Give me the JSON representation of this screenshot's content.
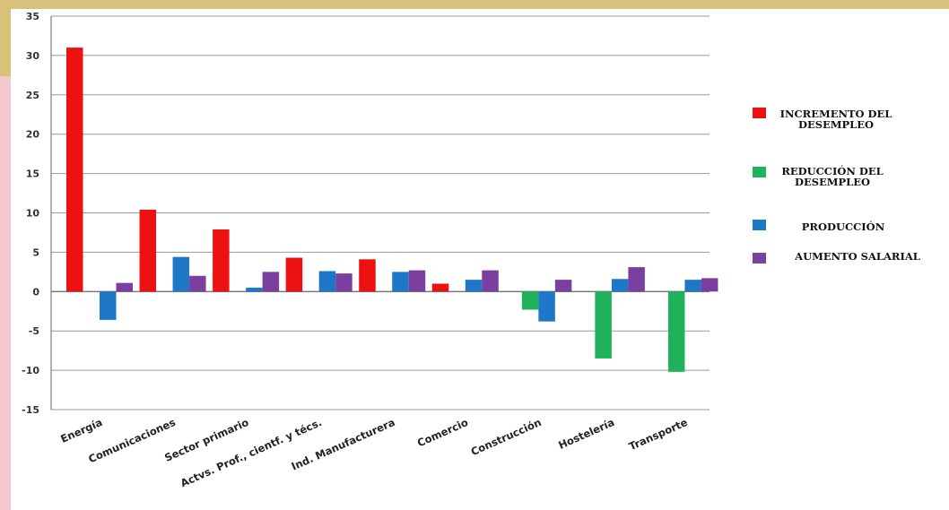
{
  "chart_data": {
    "type": "bar",
    "title": "",
    "xlabel": "",
    "ylabel": "",
    "ylim": [
      -15,
      35
    ],
    "yticks": [
      35,
      30,
      25,
      20,
      15,
      10,
      5,
      0,
      -5,
      -10,
      -15
    ],
    "grid": true,
    "legend_position": "right",
    "categories": [
      "Energía",
      "Comunicaciones",
      "Sector primario",
      "Actvs. Prof., cientf. y técs.",
      "Ind. Manufacturera",
      "Comercio",
      "Construcción",
      "Hostelería",
      "Transporte"
    ],
    "series": [
      {
        "name": "INCREMENTO DEL DESEMPLEO",
        "legend_lines": [
          "INCREMENTO DEL",
          "DESEMPLEO"
        ],
        "color": "#ee1111",
        "values": [
          31,
          10.4,
          7.9,
          4.3,
          4.1,
          1.0,
          null,
          null,
          null
        ]
      },
      {
        "name": "REDUCCIÓN DEL DESEMPLEO",
        "legend_lines": [
          "REDUCCIÓN DEL",
          "DESEMPLEO"
        ],
        "color": "#1fb25a",
        "values": [
          null,
          null,
          null,
          null,
          null,
          null,
          -2.3,
          -8.5,
          -10.2
        ]
      },
      {
        "name": "PRODUCCIÓN",
        "legend_lines": [
          "PRODUCCIÓN"
        ],
        "color": "#1f77c8",
        "values": [
          -3.6,
          4.4,
          0.5,
          2.6,
          2.5,
          1.5,
          -3.8,
          1.6,
          1.5
        ]
      },
      {
        "name": "AUMENTO SALARIAL",
        "legend_lines": [
          "AUMENTO SALARIAL"
        ],
        "color": "#7b3fa0",
        "values": [
          1.1,
          2.0,
          2.5,
          2.3,
          2.7,
          2.7,
          1.5,
          3.1,
          1.7
        ]
      }
    ]
  }
}
